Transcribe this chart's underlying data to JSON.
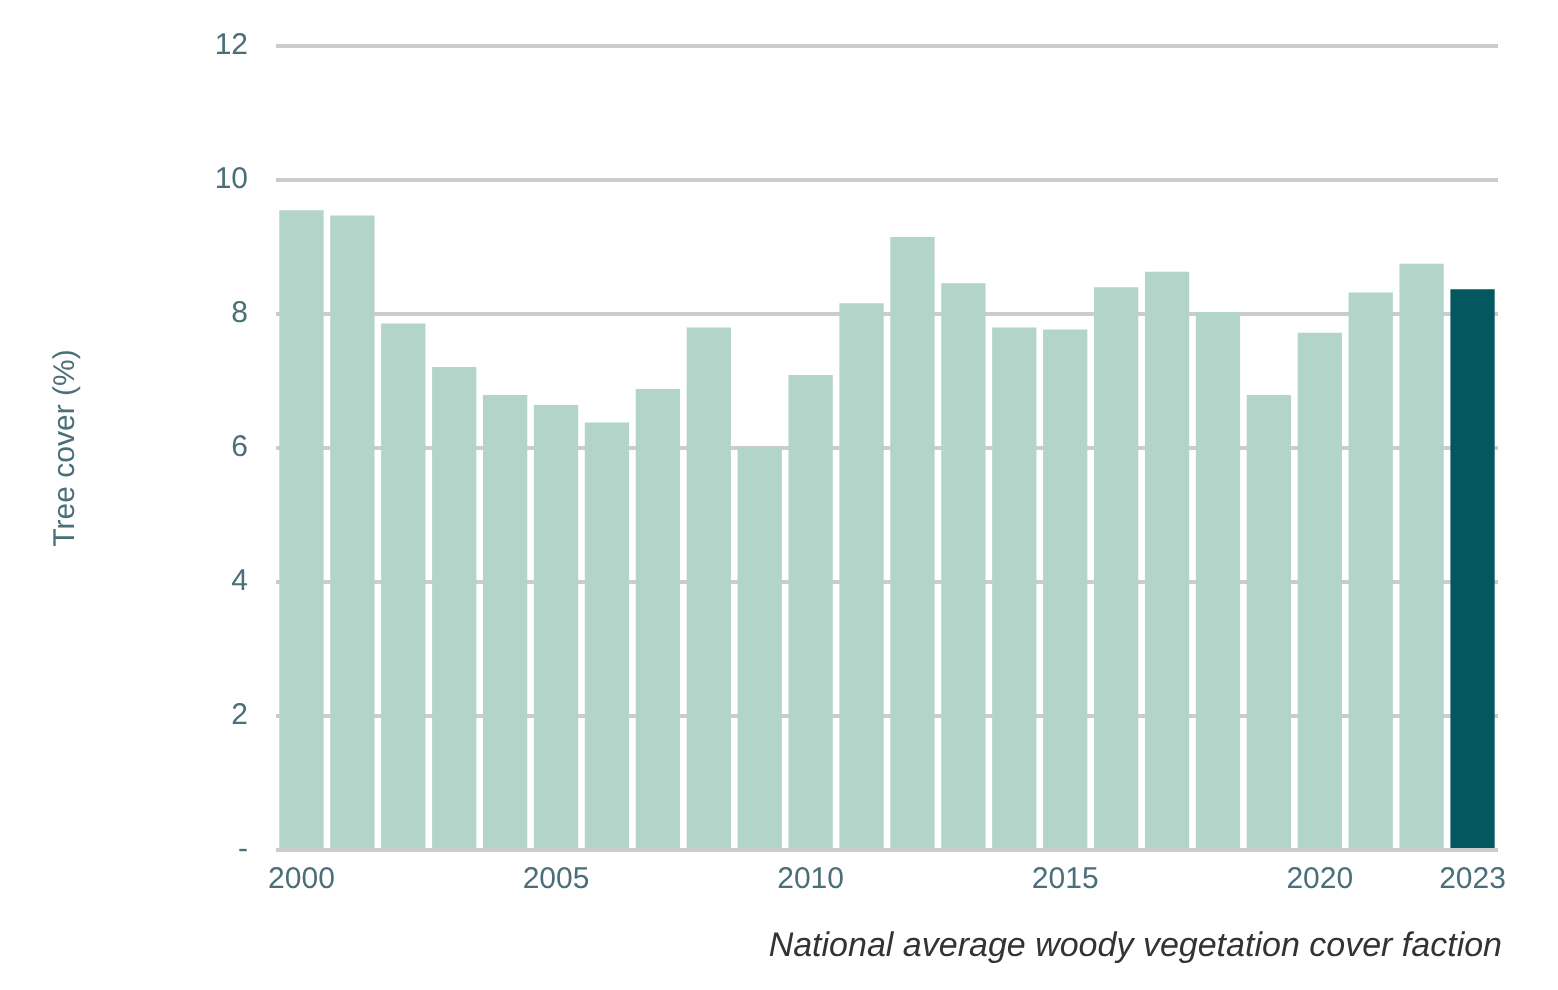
{
  "chart_data": {
    "type": "bar",
    "ylabel": "Tree cover (%)",
    "categories": [
      "2000",
      null,
      null,
      null,
      null,
      "2005",
      null,
      null,
      null,
      null,
      "2010",
      null,
      null,
      null,
      null,
      "2015",
      null,
      null,
      null,
      null,
      "2020",
      null,
      null,
      "2023"
    ],
    "values": [
      9.55,
      9.47,
      7.86,
      7.21,
      6.79,
      6.64,
      6.38,
      6.88,
      7.8,
      6.01,
      7.09,
      8.16,
      9.15,
      8.46,
      7.8,
      7.77,
      8.4,
      8.63,
      8.03,
      6.79,
      7.72,
      8.32,
      8.75,
      8.37
    ],
    "colors": [
      "#b3d4c9",
      "#b3d4c9",
      "#b3d4c9",
      "#b3d4c9",
      "#b3d4c9",
      "#b3d4c9",
      "#b3d4c9",
      "#b3d4c9",
      "#b3d4c9",
      "#b3d4c9",
      "#b3d4c9",
      "#b3d4c9",
      "#b3d4c9",
      "#b3d4c9",
      "#b3d4c9",
      "#b3d4c9",
      "#b3d4c9",
      "#b3d4c9",
      "#b3d4c9",
      "#b3d4c9",
      "#b3d4c9",
      "#b3d4c9",
      "#b3d4c9",
      "#02585e"
    ],
    "ylim": [
      0,
      12
    ],
    "yticks": [
      {
        "value": 0,
        "label": "-"
      },
      2,
      4,
      6,
      8,
      10,
      12
    ],
    "grid": "y",
    "legend": false,
    "annotations": [
      "National average woody vegetation cover faction"
    ]
  }
}
